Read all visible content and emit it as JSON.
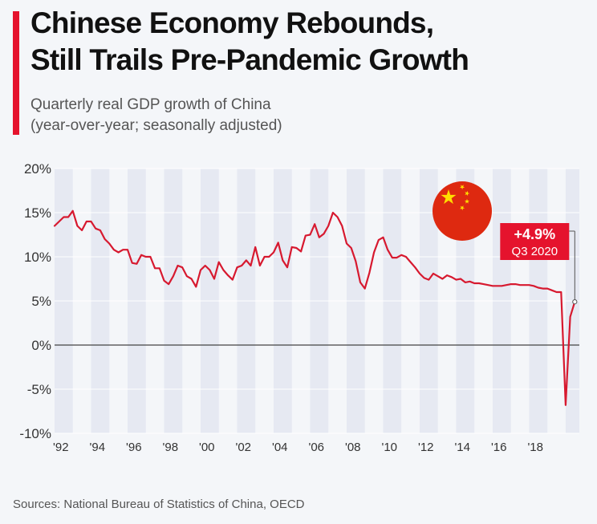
{
  "header": {
    "title_line1": "Chinese Economy Rebounds,",
    "title_line2": "Still Trails Pre-Pandemic Growth",
    "subtitle_line1": "Quarterly real GDP growth of China",
    "subtitle_line2": "(year-over-year; seasonally adjusted)"
  },
  "footer": {
    "source": "Sources: National Bureau of Statistics of China, OECD"
  },
  "colors": {
    "accent": "#e5132d",
    "line": "#d7192f",
    "band": "#e6e9f2",
    "flag_red": "#de2910",
    "flag_star": "#ffde00"
  },
  "icons": {
    "flag": "china-flag-icon"
  },
  "chart_data": {
    "type": "line",
    "title": "Quarterly real GDP growth of China",
    "ylim": [
      -10,
      20
    ],
    "yticks": [
      20,
      15,
      10,
      5,
      0,
      -5,
      -10
    ],
    "ytick_labels": [
      "20%",
      "15%",
      "10%",
      "5%",
      "0%",
      "-5%",
      "-10%"
    ],
    "xlim": [
      1992,
      2020.75
    ],
    "xticks": [
      1992,
      1994,
      1996,
      1998,
      2000,
      2002,
      2004,
      2006,
      2008,
      2010,
      2012,
      2014,
      2016,
      2018
    ],
    "xtick_labels": [
      "'92",
      "'94",
      "'96",
      "'98",
      "'00",
      "'02",
      "'04",
      "'06",
      "'08",
      "'10",
      "'12",
      "'14",
      "'16",
      "'18"
    ],
    "grid": "alternating year bands",
    "annotation": {
      "value_label": "+4.9%",
      "period_label": "Q3 2020",
      "x": 2020.5,
      "y": 4.9
    },
    "series": [
      {
        "values": [
          [
            1992.0,
            13.5
          ],
          [
            1992.25,
            14.0
          ],
          [
            1992.5,
            14.5
          ],
          [
            1992.75,
            14.5
          ],
          [
            1993.0,
            15.2
          ],
          [
            1993.25,
            13.5
          ],
          [
            1993.5,
            13.0
          ],
          [
            1993.75,
            14.0
          ],
          [
            1994.0,
            14.0
          ],
          [
            1994.25,
            13.2
          ],
          [
            1994.5,
            13.0
          ],
          [
            1994.75,
            12.0
          ],
          [
            1995.0,
            11.5
          ],
          [
            1995.25,
            10.8
          ],
          [
            1995.5,
            10.5
          ],
          [
            1995.75,
            10.8
          ],
          [
            1996.0,
            10.8
          ],
          [
            1996.25,
            9.3
          ],
          [
            1996.5,
            9.2
          ],
          [
            1996.75,
            10.2
          ],
          [
            1997.0,
            10.0
          ],
          [
            1997.25,
            10.0
          ],
          [
            1997.5,
            8.7
          ],
          [
            1997.75,
            8.7
          ],
          [
            1998.0,
            7.3
          ],
          [
            1998.25,
            6.9
          ],
          [
            1998.5,
            7.8
          ],
          [
            1998.75,
            9.0
          ],
          [
            1999.0,
            8.8
          ],
          [
            1999.25,
            7.8
          ],
          [
            1999.5,
            7.5
          ],
          [
            1999.75,
            6.6
          ],
          [
            2000.0,
            8.5
          ],
          [
            2000.25,
            9.0
          ],
          [
            2000.5,
            8.5
          ],
          [
            2000.75,
            7.5
          ],
          [
            2001.0,
            9.4
          ],
          [
            2001.25,
            8.5
          ],
          [
            2001.5,
            7.9
          ],
          [
            2001.75,
            7.4
          ],
          [
            2002.0,
            8.8
          ],
          [
            2002.25,
            9.0
          ],
          [
            2002.5,
            9.6
          ],
          [
            2002.75,
            9.0
          ],
          [
            2003.0,
            11.1
          ],
          [
            2003.25,
            9.0
          ],
          [
            2003.5,
            10.0
          ],
          [
            2003.75,
            10.0
          ],
          [
            2004.0,
            10.5
          ],
          [
            2004.25,
            11.6
          ],
          [
            2004.5,
            9.6
          ],
          [
            2004.75,
            8.8
          ],
          [
            2005.0,
            11.1
          ],
          [
            2005.25,
            11.0
          ],
          [
            2005.5,
            10.6
          ],
          [
            2005.75,
            12.4
          ],
          [
            2006.0,
            12.5
          ],
          [
            2006.25,
            13.7
          ],
          [
            2006.5,
            12.2
          ],
          [
            2006.75,
            12.6
          ],
          [
            2007.0,
            13.5
          ],
          [
            2007.25,
            15.0
          ],
          [
            2007.5,
            14.5
          ],
          [
            2007.75,
            13.5
          ],
          [
            2008.0,
            11.5
          ],
          [
            2008.25,
            11.0
          ],
          [
            2008.5,
            9.5
          ],
          [
            2008.75,
            7.1
          ],
          [
            2009.0,
            6.4
          ],
          [
            2009.25,
            8.2
          ],
          [
            2009.5,
            10.5
          ],
          [
            2009.75,
            11.9
          ],
          [
            2010.0,
            12.2
          ],
          [
            2010.25,
            10.8
          ],
          [
            2010.5,
            9.9
          ],
          [
            2010.75,
            9.9
          ],
          [
            2011.0,
            10.2
          ],
          [
            2011.25,
            10.0
          ],
          [
            2011.5,
            9.4
          ],
          [
            2011.75,
            8.8
          ],
          [
            2012.0,
            8.1
          ],
          [
            2012.25,
            7.6
          ],
          [
            2012.5,
            7.4
          ],
          [
            2012.75,
            8.1
          ],
          [
            2013.0,
            7.8
          ],
          [
            2013.25,
            7.5
          ],
          [
            2013.5,
            7.9
          ],
          [
            2013.75,
            7.7
          ],
          [
            2014.0,
            7.4
          ],
          [
            2014.25,
            7.5
          ],
          [
            2014.5,
            7.1
          ],
          [
            2014.75,
            7.2
          ],
          [
            2015.0,
            7.0
          ],
          [
            2015.25,
            7.0
          ],
          [
            2015.5,
            6.9
          ],
          [
            2015.75,
            6.8
          ],
          [
            2016.0,
            6.7
          ],
          [
            2016.25,
            6.7
          ],
          [
            2016.5,
            6.7
          ],
          [
            2016.75,
            6.8
          ],
          [
            2017.0,
            6.9
          ],
          [
            2017.25,
            6.9
          ],
          [
            2017.5,
            6.8
          ],
          [
            2017.75,
            6.8
          ],
          [
            2018.0,
            6.8
          ],
          [
            2018.25,
            6.7
          ],
          [
            2018.5,
            6.5
          ],
          [
            2018.75,
            6.4
          ],
          [
            2019.0,
            6.4
          ],
          [
            2019.25,
            6.2
          ],
          [
            2019.5,
            6.0
          ],
          [
            2019.75,
            6.0
          ],
          [
            2020.0,
            -6.8
          ],
          [
            2020.25,
            3.2
          ],
          [
            2020.5,
            4.9
          ]
        ]
      }
    ]
  }
}
